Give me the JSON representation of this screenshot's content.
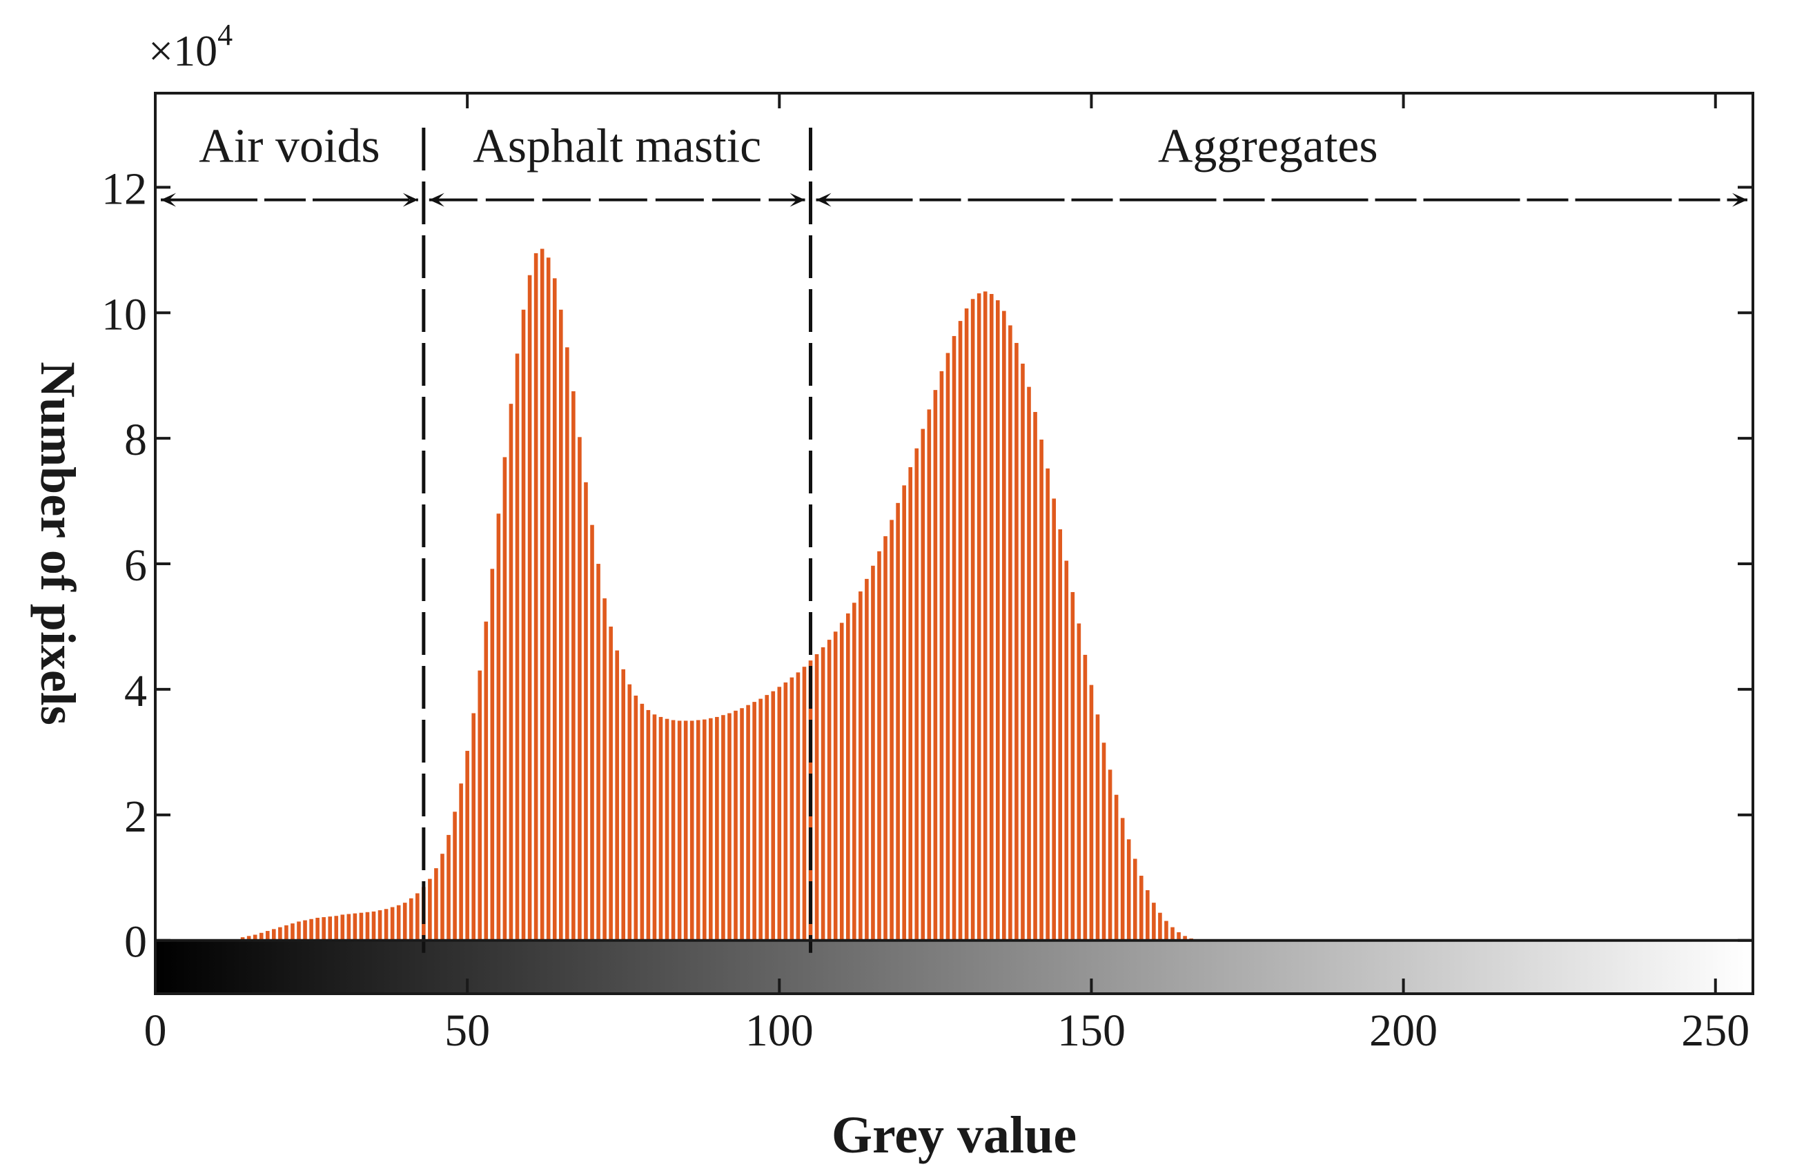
{
  "chart_data": {
    "type": "bar",
    "xlabel": "Grey value",
    "ylabel": "Number of pixels",
    "y_multiplier_label": "×10",
    "y_multiplier_exponent": "4",
    "xlim": [
      0,
      256
    ],
    "ylim": [
      -0.85,
      13.5
    ],
    "xticks": [
      0,
      50,
      100,
      150,
      200,
      250
    ],
    "yticks": [
      0,
      2,
      4,
      6,
      8,
      10,
      12
    ],
    "bar_color": "#E05A1E",
    "colorbar": {
      "from": "#000000",
      "to": "#ffffff",
      "y_range": [
        -0.85,
        0
      ]
    },
    "thresholds": [
      43,
      105
    ],
    "regions": [
      {
        "label": "Air voids",
        "x_range": [
          0,
          43
        ]
      },
      {
        "label": "Asphalt mastic",
        "x_range": [
          43,
          105
        ]
      },
      {
        "label": "Aggregates",
        "x_range": [
          105,
          256
        ]
      }
    ],
    "region_arrow_y": 11.8,
    "bins_start": 14,
    "bin_width": 1,
    "values": [
      0.05,
      0.07,
      0.09,
      0.12,
      0.15,
      0.18,
      0.21,
      0.24,
      0.27,
      0.3,
      0.32,
      0.34,
      0.36,
      0.37,
      0.38,
      0.39,
      0.41,
      0.42,
      0.43,
      0.44,
      0.45,
      0.46,
      0.48,
      0.5,
      0.53,
      0.56,
      0.6,
      0.67,
      0.75,
      0.85,
      0.98,
      1.15,
      1.38,
      1.68,
      2.05,
      2.5,
      3.02,
      3.62,
      4.3,
      5.08,
      5.92,
      6.8,
      7.7,
      8.55,
      9.35,
      10.05,
      10.6,
      10.95,
      11.02,
      10.88,
      10.55,
      10.05,
      9.45,
      8.75,
      8.02,
      7.3,
      6.62,
      6.0,
      5.45,
      5.0,
      4.62,
      4.32,
      4.08,
      3.9,
      3.77,
      3.67,
      3.6,
      3.56,
      3.53,
      3.51,
      3.5,
      3.5,
      3.5,
      3.51,
      3.52,
      3.54,
      3.56,
      3.59,
      3.62,
      3.66,
      3.7,
      3.75,
      3.8,
      3.85,
      3.91,
      3.97,
      4.04,
      4.11,
      4.19,
      4.27,
      4.36,
      4.46,
      4.56,
      4.67,
      4.79,
      4.92,
      5.06,
      5.21,
      5.38,
      5.56,
      5.76,
      5.97,
      6.2,
      6.44,
      6.7,
      6.97,
      7.25,
      7.54,
      7.84,
      8.15,
      8.46,
      8.77,
      9.07,
      9.36,
      9.63,
      9.87,
      10.07,
      10.22,
      10.31,
      10.34,
      10.3,
      10.2,
      10.03,
      9.8,
      9.52,
      9.19,
      8.82,
      8.42,
      7.98,
      7.52,
      7.04,
      6.55,
      6.05,
      5.55,
      5.05,
      4.55,
      4.07,
      3.6,
      3.15,
      2.72,
      2.32,
      1.95,
      1.61,
      1.3,
      1.03,
      0.8,
      0.6,
      0.44,
      0.31,
      0.21,
      0.13,
      0.07,
      0.03
    ]
  }
}
